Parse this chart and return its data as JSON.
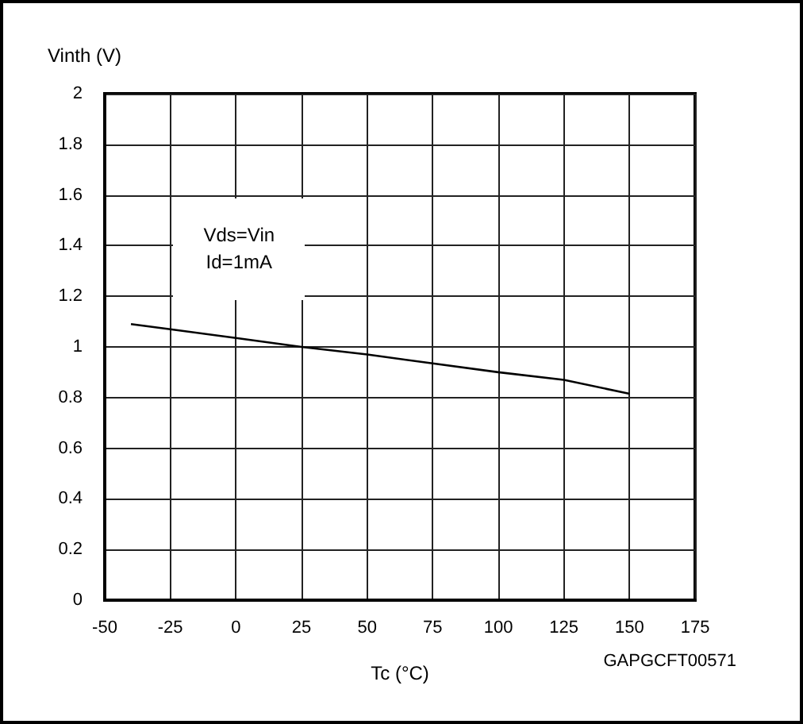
{
  "chart_data": {
    "type": "line",
    "xlabel": "Tc (°C)",
    "ylabel": "Vinth (V)",
    "x": [
      -40,
      -25,
      0,
      25,
      50,
      75,
      100,
      125,
      150
    ],
    "series": [
      {
        "color": "#000000",
        "values": [
          1.09,
          1.07,
          1.035,
          1.0,
          0.97,
          0.935,
          0.9,
          0.87,
          0.815
        ]
      }
    ],
    "xlim": [
      -50,
      175
    ],
    "xticks": [
      -50,
      -25,
      0,
      25,
      50,
      75,
      100,
      125,
      150,
      175
    ],
    "ylim": [
      0,
      2
    ],
    "yticks": [
      0,
      0.2,
      0.4,
      0.6,
      0.8,
      1,
      1.2,
      1.4,
      1.6,
      1.8,
      2
    ],
    "grid": true,
    "marker": "none",
    "line_style": "solid",
    "annotations": [
      "Vds=Vin\nId=1mA",
      "GAPGCFT00571"
    ]
  }
}
